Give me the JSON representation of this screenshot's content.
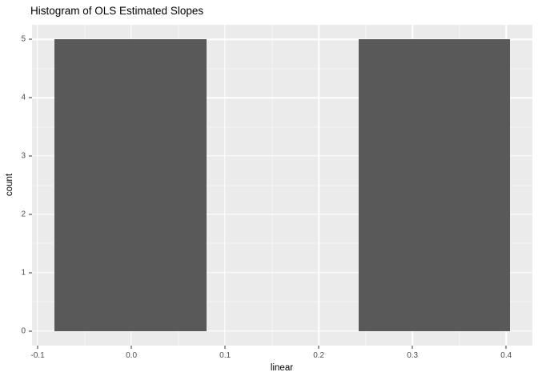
{
  "chart_data": {
    "type": "bar",
    "subtype": "histogram",
    "title": "Histogram of OLS Estimated Slopes",
    "xlabel": "linear",
    "ylabel": "count",
    "bars": [
      {
        "x0": -0.082,
        "x1": 0.08,
        "count": 5
      },
      {
        "x0": 0.243,
        "x1": 0.404,
        "count": 5
      }
    ],
    "xlim": [
      -0.106,
      0.428
    ],
    "ylim": [
      -0.25,
      5.25
    ],
    "x_ticks": [
      -0.1,
      0.0,
      0.1,
      0.2,
      0.3,
      0.4
    ],
    "x_tick_labels": [
      "-0.1",
      "0.0",
      "0.1",
      "0.2",
      "0.3",
      "0.4"
    ],
    "y_ticks": [
      0,
      1,
      2,
      3,
      4,
      5
    ],
    "y_tick_labels": [
      "0",
      "1",
      "2",
      "3",
      "4",
      "5"
    ],
    "x_minor_ticks": [
      -0.05,
      0.05,
      0.15,
      0.25,
      0.35
    ],
    "y_minor_ticks": [
      0.5,
      1.5,
      2.5,
      3.5,
      4.5
    ],
    "grid": true,
    "legend_position": "none",
    "colors": {
      "panel_bg": "#EBEBEB",
      "bar_fill": "#595959",
      "grid_major": "#FFFFFF",
      "grid_minor": "#F6F6F6",
      "tick_label": "#4D4D4D",
      "tick_mark": "#333333",
      "title_text": "#000000",
      "figure_bg": "#FFFFFF"
    }
  }
}
